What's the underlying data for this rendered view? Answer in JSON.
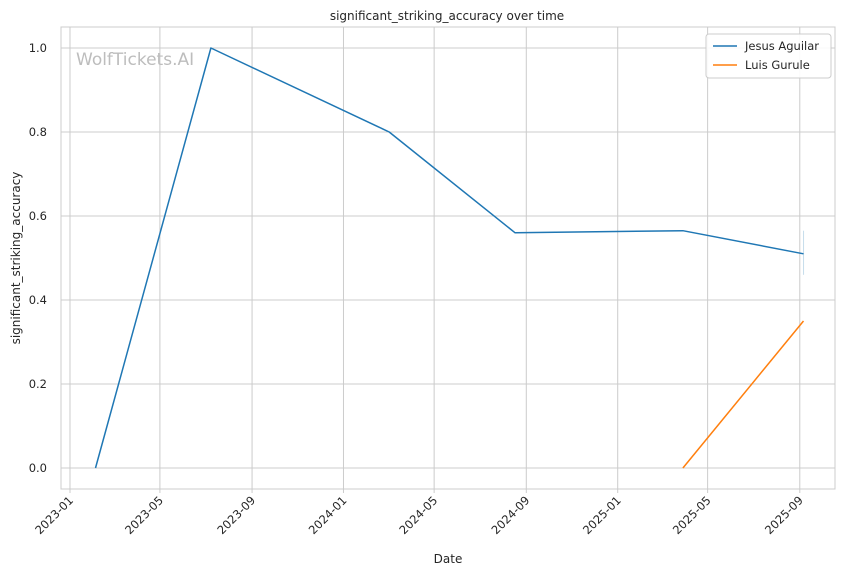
{
  "chart_data": {
    "type": "line",
    "title": "significant_striking_accuracy over time",
    "xlabel": "Date",
    "ylabel": "significant_striking_accuracy",
    "watermark": "WolfTickets.AI",
    "x_ticks": [
      "2023-01",
      "2023-05",
      "2023-09",
      "2024-01",
      "2024-05",
      "2024-09",
      "2025-01",
      "2025-05",
      "2025-09"
    ],
    "y_ticks": [
      "0.0",
      "0.2",
      "0.4",
      "0.6",
      "0.8",
      "1.0"
    ],
    "ylim": [
      -0.05,
      1.05
    ],
    "xlim": [
      "2022-12-20",
      "2025-10-18"
    ],
    "grid": true,
    "legend_position": "top-right",
    "series": [
      {
        "name": "Jesus Aguilar",
        "color": "#1f77b4",
        "points": [
          {
            "x": "2023-02-04",
            "y": 0.0
          },
          {
            "x": "2023-07-08",
            "y": 1.0
          },
          {
            "x": "2024-03-02",
            "y": 0.8
          },
          {
            "x": "2024-08-17",
            "y": 0.56
          },
          {
            "x": "2025-03-29",
            "y": 0.565
          },
          {
            "x": "2025-09-06",
            "y": 0.51
          }
        ],
        "error_bar": {
          "x": "2025-09-06",
          "low": 0.46,
          "high": 0.565
        }
      },
      {
        "name": "Luis Gurule",
        "color": "#ff7f0e",
        "points": [
          {
            "x": "2025-03-29",
            "y": 0.0
          },
          {
            "x": "2025-09-06",
            "y": 0.35
          }
        ]
      }
    ]
  }
}
